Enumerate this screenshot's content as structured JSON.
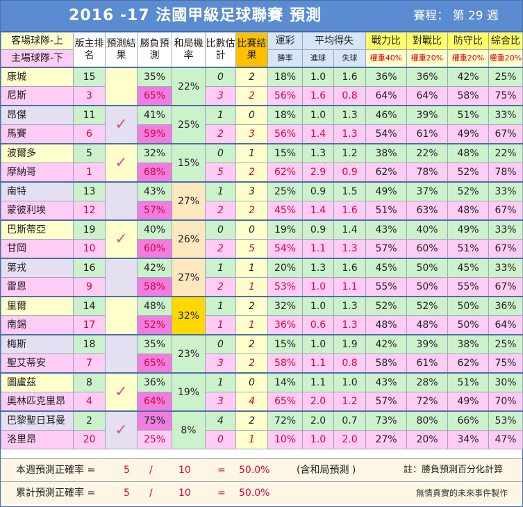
{
  "title": "2016 -17  法國甲級足球聯賽  預測",
  "round_label": "賽程：  第 29 週",
  "header": {
    "team_top": "客場球隊-上",
    "team_bottom": "主場球隊-下",
    "rank": "版主排名",
    "pred_result": "預測結果",
    "wl_pred": "勝負預測",
    "draw": "和局機率",
    "score_est": "比數估計",
    "match_result": "比賽結果",
    "lottery": "運彩",
    "lottery_sub": "勝率",
    "avg": "平均得失",
    "avg_sub_for": "進球",
    "avg_sub_against": "失球",
    "power": "戰力比",
    "power_sub": "權重40%",
    "h2h": "對戰比",
    "h2h_sub": "權重20%",
    "defense": "防守比",
    "defense_sub": "權重20%",
    "overall": "綜合比",
    "overall_sub": "權重20%"
  },
  "check_symbol": "✓",
  "matches": [
    {
      "draw": "22%",
      "check": false,
      "teams": [
        {
          "name": "康城",
          "rank": "15",
          "wl": "35%",
          "est": "0",
          "res": "2",
          "lot": "18%",
          "gf": "1.0",
          "ga": "1.6",
          "pw": "36%",
          "h2h": "36%",
          "df": "42%",
          "ov": "25%"
        },
        {
          "name": "尼斯",
          "rank": "3",
          "wl": "65%",
          "est": "3",
          "res": "2",
          "lot": "56%",
          "gf": "1.6",
          "ga": "0.8",
          "pw": "64%",
          "h2h": "64%",
          "df": "58%",
          "ov": "75%"
        }
      ]
    },
    {
      "draw": "25%",
      "check": true,
      "teams": [
        {
          "name": "昂傑",
          "rank": "11",
          "wl": "41%",
          "est": "1",
          "res": "0",
          "lot": "18%",
          "gf": "1.0",
          "ga": "1.3",
          "pw": "46%",
          "h2h": "39%",
          "df": "51%",
          "ov": "33%"
        },
        {
          "name": "馬賽",
          "rank": "6",
          "wl": "59%",
          "est": "2",
          "res": "3",
          "lot": "56%",
          "gf": "1.4",
          "ga": "1.3",
          "pw": "54%",
          "h2h": "61%",
          "df": "49%",
          "ov": "67%"
        }
      ]
    },
    {
      "draw": "15%",
      "check": true,
      "teams": [
        {
          "name": "波爾多",
          "rank": "5",
          "wl": "32%",
          "est": "0",
          "res": "1",
          "lot": "15%",
          "gf": "1.3",
          "ga": "1.2",
          "pw": "38%",
          "h2h": "22%",
          "df": "48%",
          "ov": "22%"
        },
        {
          "name": "摩納哥",
          "rank": "1",
          "wl": "68%",
          "est": "5",
          "res": "2",
          "lot": "62%",
          "gf": "2.9",
          "ga": "0.9",
          "pw": "62%",
          "h2h": "78%",
          "df": "52%",
          "ov": "78%"
        }
      ]
    },
    {
      "draw": "27%",
      "check": false,
      "teams": [
        {
          "name": "南特",
          "rank": "13",
          "wl": "43%",
          "est": "1",
          "res": "3",
          "lot": "25%",
          "gf": "0.9",
          "ga": "1.5",
          "pw": "49%",
          "h2h": "37%",
          "df": "52%",
          "ov": "33%"
        },
        {
          "name": "蒙彼利埃",
          "rank": "12",
          "wl": "57%",
          "est": "2",
          "res": "2",
          "lot": "45%",
          "gf": "1.4",
          "ga": "1.6",
          "pw": "51%",
          "h2h": "63%",
          "df": "48%",
          "ov": "67%"
        }
      ]
    },
    {
      "draw": "26%",
      "check": true,
      "teams": [
        {
          "name": "巴斯蒂亞",
          "rank": "19",
          "wl": "40%",
          "est": "0",
          "res": "0",
          "lot": "19%",
          "gf": "0.9",
          "ga": "1.4",
          "pw": "43%",
          "h2h": "40%",
          "df": "49%",
          "ov": "33%"
        },
        {
          "name": "甘岡",
          "rank": "10",
          "wl": "60%",
          "est": "2",
          "res": "5",
          "lot": "54%",
          "gf": "1.1",
          "ga": "1.3",
          "pw": "57%",
          "h2h": "60%",
          "df": "51%",
          "ov": "67%"
        }
      ]
    },
    {
      "draw": "27%",
      "check": false,
      "teams": [
        {
          "name": "第戎",
          "rank": "16",
          "wl": "42%",
          "est": "1",
          "res": "1",
          "lot": "20%",
          "gf": "1.3",
          "ga": "1.6",
          "pw": "45%",
          "h2h": "50%",
          "df": "45%",
          "ov": "33%"
        },
        {
          "name": "雷恩",
          "rank": "9",
          "wl": "58%",
          "est": "2",
          "res": "1",
          "lot": "53%",
          "gf": "1.0",
          "ga": "1.1",
          "pw": "55%",
          "h2h": "50%",
          "df": "55%",
          "ov": "67%"
        }
      ]
    },
    {
      "draw": "32%",
      "check": false,
      "teams": [
        {
          "name": "里爾",
          "rank": "14",
          "wl": "48%",
          "est": "1",
          "res": "2",
          "lot": "32%",
          "gf": "1.0",
          "ga": "1.3",
          "pw": "52%",
          "h2h": "52%",
          "df": "50%",
          "ov": "36%"
        },
        {
          "name": "南錫",
          "rank": "17",
          "wl": "52%",
          "est": "1",
          "res": "1",
          "lot": "36%",
          "gf": "0.6",
          "ga": "1.3",
          "pw": "48%",
          "h2h": "48%",
          "df": "50%",
          "ov": "64%"
        }
      ]
    },
    {
      "draw": "23%",
      "check": false,
      "teams": [
        {
          "name": "梅斯",
          "rank": "18",
          "wl": "35%",
          "est": "0",
          "res": "2",
          "lot": "15%",
          "gf": "1.0",
          "ga": "1.9",
          "pw": "42%",
          "h2h": "39%",
          "df": "38%",
          "ov": "25%"
        },
        {
          "name": "聖艾蒂安",
          "rank": "7",
          "wl": "65%",
          "est": "3",
          "res": "2",
          "lot": "58%",
          "gf": "1.1",
          "ga": "0.8",
          "pw": "58%",
          "h2h": "61%",
          "df": "62%",
          "ov": "75%"
        }
      ]
    },
    {
      "draw": "19%",
      "check": true,
      "teams": [
        {
          "name": "圖盧茲",
          "rank": "8",
          "wl": "36%",
          "est": "1",
          "res": "0",
          "lot": "14%",
          "gf": "1.1",
          "ga": "1.0",
          "pw": "43%",
          "h2h": "28%",
          "df": "51%",
          "ov": "30%"
        },
        {
          "name": "奧林匹克里昂",
          "rank": "4",
          "wl": "64%",
          "est": "3",
          "res": "4",
          "lot": "65%",
          "gf": "2.0",
          "ga": "1.2",
          "pw": "57%",
          "h2h": "72%",
          "df": "49%",
          "ov": "70%"
        }
      ]
    },
    {
      "draw": "8%",
      "check": true,
      "teams": [
        {
          "name": "巴黎聖日耳曼",
          "rank": "2",
          "wl": "75%",
          "est": "4",
          "res": "2",
          "lot": "72%",
          "gf": "2.0",
          "ga": "0.7",
          "pw": "73%",
          "h2h": "80%",
          "df": "66%",
          "ov": "53%"
        },
        {
          "name": "洛里昂",
          "rank": "20",
          "wl": "25%",
          "est": "0",
          "res": "1",
          "lot": "10%",
          "gf": "1.0",
          "ga": "2.0",
          "pw": "27%",
          "h2h": "20%",
          "df": "34%",
          "ov": "47%"
        }
      ]
    }
  ],
  "footer": {
    "weekly_label": "本週預測正確率 =",
    "weekly_correct": "5",
    "weekly_total": "10",
    "weekly_pct": "50.0%",
    "slash": "/",
    "equals": "=",
    "incl_draw": "(含和局預測 )",
    "note": "註：勝負預測百分化計算",
    "cumul_label": "累計預測正確率 =",
    "cumul_correct": "5",
    "cumul_total": "10",
    "cumul_pct": "50.0%",
    "credit": "無情真實的未來事件製作"
  },
  "chart_data": {
    "type": "table",
    "title": "2016 -17  法國甲級足球聯賽  預測",
    "round": "第 29 週",
    "columns": [
      "客場球隊-上/主場球隊-下",
      "版主排名",
      "預測結果",
      "勝負預測",
      "和局機率",
      "比數估計",
      "比賽結果",
      "運彩勝率",
      "平均進球",
      "平均失球",
      "戰力比",
      "對戰比",
      "防守比",
      "綜合比"
    ],
    "weekly_accuracy": "50.0%",
    "cumulative_accuracy": "50.0%"
  }
}
